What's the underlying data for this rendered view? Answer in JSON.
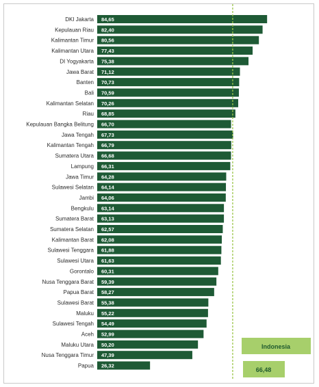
{
  "chart_data": {
    "type": "bar",
    "orientation": "horizontal",
    "categories": [
      "DKI Jakarta",
      "Kepulauan Riau",
      "Kalimantan Timur",
      "Kalimantan Utara",
      "DI Yogyakarta",
      "Jawa Barat",
      "Banten",
      "Bali",
      "Kalimantan Selatan",
      "Riau",
      "Kepulauan Bangka Belitung",
      "Jawa Tengah",
      "Kalimantan Tengah",
      "Sumatera Utara",
      "Lampung",
      "Jawa Timur",
      "Sulawesi Selatan",
      "Jambi",
      "Bengkulu",
      "Sumatera Barat",
      "Sumatera Selatan",
      "Kalimantan Barat",
      "Sulawesi Tenggara",
      "Sulawesi Utara",
      "Gorontalo",
      "Nusa Tenggara Barat",
      "Papua Barat",
      "Sulawesi Barat",
      "Maluku",
      "Sulawesi Tengah",
      "Aceh",
      "Maluku Utara",
      "Nusa Tenggara Timur",
      "Papua"
    ],
    "values": [
      84.65,
      82.4,
      80.56,
      77.43,
      75.38,
      71.12,
      70.73,
      70.59,
      70.26,
      68.85,
      66.7,
      67.73,
      66.79,
      66.68,
      66.31,
      64.28,
      64.14,
      64.06,
      63.14,
      63.13,
      62.57,
      62.08,
      61.88,
      61.63,
      60.31,
      59.39,
      58.27,
      55.38,
      55.22,
      54.49,
      52.99,
      50.2,
      47.39,
      26.32
    ],
    "value_labels": [
      "84,65",
      "82,40",
      "80,56",
      "77,43",
      "75,38",
      "71,12",
      "70,73",
      "70,59",
      "70,26",
      "68,85",
      "66,70",
      "67,73",
      "66,79",
      "66,68",
      "66,31",
      "64,28",
      "64,14",
      "64,06",
      "63,14",
      "63,13",
      "62,57",
      "62,08",
      "61,88",
      "61,63",
      "60,31",
      "59,39",
      "58,27",
      "55,38",
      "55,22",
      "54,49",
      "52,99",
      "50,20",
      "47,39",
      "26,32"
    ],
    "reference_line": {
      "label": "Indonesia",
      "value": 66.48,
      "value_label": "66,48"
    },
    "xlim": [
      0,
      88
    ],
    "grid": false,
    "legend": "none",
    "colors": {
      "bar": "#1e5a35",
      "reference_line": "#9bc54a",
      "badge_fill": "#a7cf6b",
      "badge_text": "#1f5a2e"
    }
  }
}
